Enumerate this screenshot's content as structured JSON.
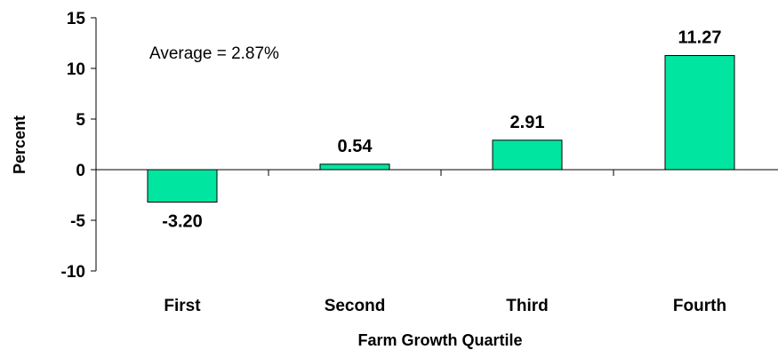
{
  "chart_data": {
    "type": "bar",
    "categories": [
      "First",
      "Second",
      "Third",
      "Fourth"
    ],
    "values": [
      -3.2,
      0.54,
      2.91,
      11.27
    ],
    "data_labels": [
      "-3.20",
      "0.54",
      "2.91",
      "11.27"
    ],
    "title": "",
    "xlabel": "Farm Growth Quartile",
    "ylabel": "Percent",
    "ylim": [
      -10,
      15
    ],
    "yticks": [
      -10,
      -5,
      0,
      5,
      10,
      15
    ],
    "ytick_labels": [
      "-10",
      "-5",
      "0",
      "5",
      "10",
      "15"
    ],
    "annotation": "Average = 2.87%",
    "bar_color": "#00E5A0",
    "grid": false,
    "legend": "none"
  }
}
